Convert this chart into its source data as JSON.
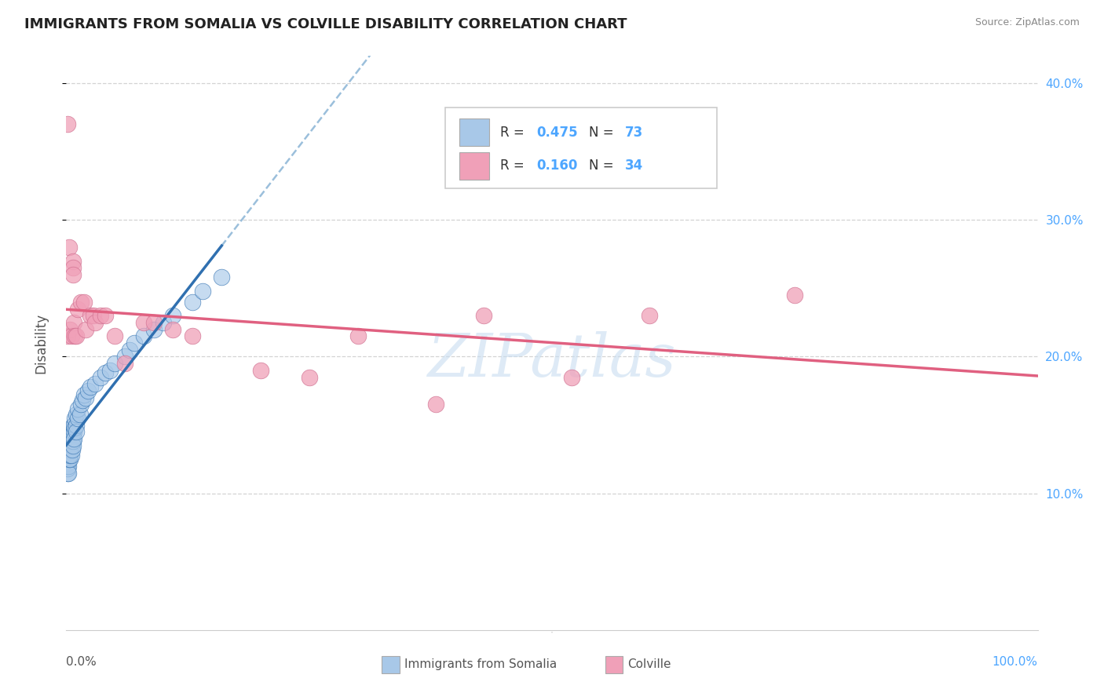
{
  "title": "IMMIGRANTS FROM SOMALIA VS COLVILLE DISABILITY CORRELATION CHART",
  "source": "Source: ZipAtlas.com",
  "ylabel": "Disability",
  "xlim": [
    0,
    1.0
  ],
  "ylim": [
    0.0,
    0.42
  ],
  "yticks": [
    0.1,
    0.2,
    0.3,
    0.4
  ],
  "ytick_labels": [
    "10.0%",
    "20.0%",
    "30.0%",
    "40.0%"
  ],
  "background_color": "#ffffff",
  "grid_color": "#c8c8c8",
  "blue_color": "#a8c8e8",
  "pink_color": "#f0a0b8",
  "blue_line_color": "#3070b0",
  "pink_line_color": "#e06080",
  "dashed_line_color": "#90b8d8",
  "watermark_color": "#c8ddf0",
  "somalia_x": [
    0.001,
    0.001,
    0.001,
    0.001,
    0.001,
    0.001,
    0.001,
    0.001,
    0.001,
    0.001,
    0.002,
    0.002,
    0.002,
    0.002,
    0.002,
    0.002,
    0.002,
    0.002,
    0.003,
    0.003,
    0.003,
    0.003,
    0.003,
    0.003,
    0.004,
    0.004,
    0.004,
    0.004,
    0.004,
    0.005,
    0.005,
    0.005,
    0.005,
    0.006,
    0.006,
    0.006,
    0.007,
    0.007,
    0.007,
    0.008,
    0.008,
    0.008,
    0.009,
    0.009,
    0.01,
    0.01,
    0.01,
    0.012,
    0.012,
    0.014,
    0.015,
    0.017,
    0.018,
    0.02,
    0.022,
    0.025,
    0.03,
    0.035,
    0.04,
    0.045,
    0.05,
    0.06,
    0.065,
    0.07,
    0.08,
    0.09,
    0.1,
    0.11,
    0.13,
    0.14,
    0.16
  ],
  "somalia_y": [
    0.13,
    0.135,
    0.125,
    0.12,
    0.14,
    0.128,
    0.133,
    0.122,
    0.115,
    0.118,
    0.132,
    0.138,
    0.125,
    0.128,
    0.135,
    0.12,
    0.142,
    0.115,
    0.13,
    0.125,
    0.14,
    0.135,
    0.128,
    0.132,
    0.138,
    0.125,
    0.132,
    0.128,
    0.14,
    0.135,
    0.142,
    0.128,
    0.138,
    0.14,
    0.132,
    0.145,
    0.138,
    0.15,
    0.135,
    0.145,
    0.15,
    0.14,
    0.148,
    0.155,
    0.15,
    0.145,
    0.158,
    0.155,
    0.162,
    0.158,
    0.165,
    0.168,
    0.172,
    0.17,
    0.175,
    0.178,
    0.18,
    0.185,
    0.188,
    0.19,
    0.195,
    0.2,
    0.205,
    0.21,
    0.215,
    0.22,
    0.225,
    0.23,
    0.24,
    0.248,
    0.258
  ],
  "colville_x": [
    0.001,
    0.001,
    0.003,
    0.004,
    0.005,
    0.007,
    0.007,
    0.007,
    0.008,
    0.009,
    0.01,
    0.012,
    0.015,
    0.018,
    0.02,
    0.025,
    0.028,
    0.03,
    0.035,
    0.04,
    0.05,
    0.06,
    0.08,
    0.09,
    0.11,
    0.13,
    0.2,
    0.25,
    0.3,
    0.38,
    0.43,
    0.52,
    0.6,
    0.75
  ],
  "colville_y": [
    0.215,
    0.37,
    0.28,
    0.22,
    0.215,
    0.27,
    0.265,
    0.26,
    0.225,
    0.215,
    0.215,
    0.235,
    0.24,
    0.24,
    0.22,
    0.23,
    0.23,
    0.225,
    0.23,
    0.23,
    0.215,
    0.195,
    0.225,
    0.225,
    0.22,
    0.215,
    0.19,
    0.185,
    0.215,
    0.165,
    0.23,
    0.185,
    0.23,
    0.245
  ]
}
